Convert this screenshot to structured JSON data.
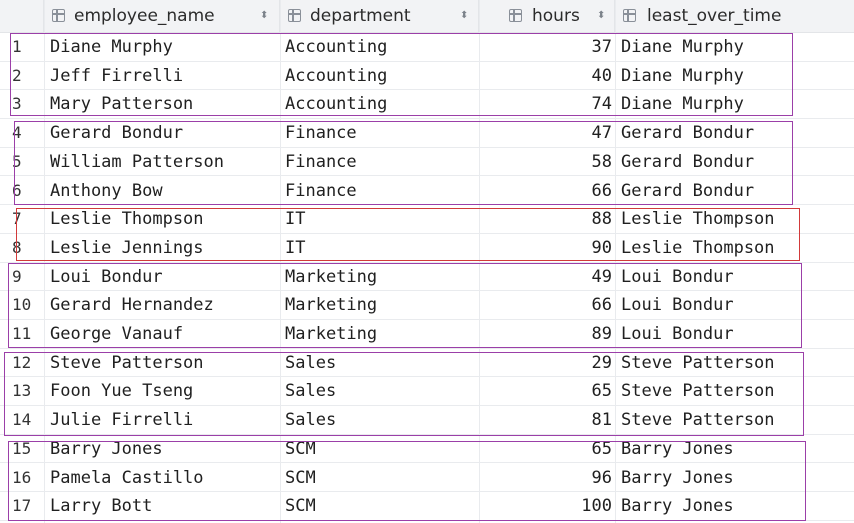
{
  "columns": [
    {
      "label": "employee_name",
      "icon": "table-column-icon",
      "sort_icon": "sort-icon"
    },
    {
      "label": "department",
      "icon": "table-column-icon",
      "sort_icon": "sort-icon"
    },
    {
      "label": "hours",
      "icon": "table-column-icon",
      "sort_icon": "sort-icon"
    },
    {
      "label": "least_over_time",
      "icon": "table-column-icon"
    }
  ],
  "rows": [
    {
      "num": "1",
      "employee_name": "Diane Murphy",
      "department": "Accounting",
      "hours": "37",
      "least_over_time": "Diane Murphy"
    },
    {
      "num": "2",
      "employee_name": "Jeff Firrelli",
      "department": "Accounting",
      "hours": "40",
      "least_over_time": "Diane Murphy"
    },
    {
      "num": "3",
      "employee_name": "Mary Patterson",
      "department": "Accounting",
      "hours": "74",
      "least_over_time": "Diane Murphy"
    },
    {
      "num": "4",
      "employee_name": "Gerard Bondur",
      "department": "Finance",
      "hours": "47",
      "least_over_time": "Gerard Bondur"
    },
    {
      "num": "5",
      "employee_name": "William Patterson",
      "department": "Finance",
      "hours": "58",
      "least_over_time": "Gerard Bondur"
    },
    {
      "num": "6",
      "employee_name": "Anthony Bow",
      "department": "Finance",
      "hours": "66",
      "least_over_time": "Gerard Bondur"
    },
    {
      "num": "7",
      "employee_name": "Leslie Thompson",
      "department": "IT",
      "hours": "88",
      "least_over_time": "Leslie Thompson"
    },
    {
      "num": "8",
      "employee_name": "Leslie Jennings",
      "department": "IT",
      "hours": "90",
      "least_over_time": "Leslie Thompson"
    },
    {
      "num": "9",
      "employee_name": "Loui Bondur",
      "department": "Marketing",
      "hours": "49",
      "least_over_time": "Loui Bondur"
    },
    {
      "num": "10",
      "employee_name": "Gerard Hernandez",
      "department": "Marketing",
      "hours": "66",
      "least_over_time": "Loui Bondur"
    },
    {
      "num": "11",
      "employee_name": "George Vanauf",
      "department": "Marketing",
      "hours": "89",
      "least_over_time": "Loui Bondur"
    },
    {
      "num": "12",
      "employee_name": "Steve Patterson",
      "department": "Sales",
      "hours": "29",
      "least_over_time": "Steve Patterson"
    },
    {
      "num": "13",
      "employee_name": "Foon Yue Tseng",
      "department": "Sales",
      "hours": "65",
      "least_over_time": "Steve Patterson"
    },
    {
      "num": "14",
      "employee_name": "Julie Firrelli",
      "department": "Sales",
      "hours": "81",
      "least_over_time": "Steve Patterson"
    },
    {
      "num": "15",
      "employee_name": "Barry Jones",
      "department": "SCM",
      "hours": "65",
      "least_over_time": "Barry Jones"
    },
    {
      "num": "16",
      "employee_name": "Pamela Castillo",
      "department": "SCM",
      "hours": "96",
      "least_over_time": "Barry Jones"
    },
    {
      "num": "17",
      "employee_name": "Larry Bott",
      "department": "SCM",
      "hours": "100",
      "least_over_time": "Barry Jones"
    }
  ],
  "group_boxes": [
    {
      "name": "Accounting",
      "color": "#9b3fa8"
    },
    {
      "name": "Finance",
      "color": "#9b3fa8"
    },
    {
      "name": "IT",
      "color": "#d23a3a"
    },
    {
      "name": "Marketing",
      "color": "#9b3fa8"
    },
    {
      "name": "Sales",
      "color": "#9b3fa8"
    },
    {
      "name": "SCM",
      "color": "#9b3fa8"
    }
  ]
}
